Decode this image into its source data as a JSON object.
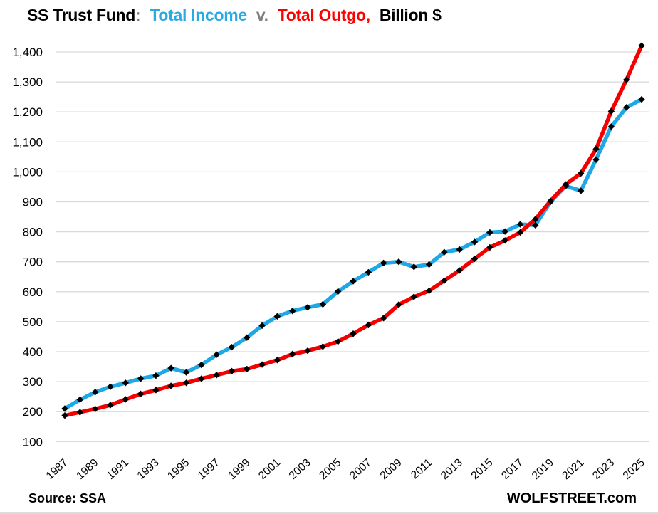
{
  "title": {
    "prefix": "SS Trust Fund",
    "colon": ":",
    "income_label": "Total Income",
    "vs_label": "v.",
    "outgo_label": "Total Outgo",
    "comma": ",",
    "suffix": "Billion $"
  },
  "footer": {
    "source": "Source: SSA",
    "brand": "WOLFSTREET.com"
  },
  "colors": {
    "title_income_blue": "#29ABE2",
    "title_outgo_red": "#FF0000",
    "title_gray": "#7F7F7F",
    "text_black": "#000000",
    "line_income_blue": "#1FA7E6",
    "line_outgo_red": "#F40000",
    "gridline_gray": "#D9D9D9",
    "marker_black": "#000000"
  },
  "chart_data": {
    "type": "line",
    "title": "SS Trust Fund: Total Income v. Total Outgo, Billion $",
    "unit": "Billion $",
    "grid": "horizontal-only",
    "legend_position": "in-title",
    "marker": "black-diamond",
    "ylim": [
      100,
      1400
    ],
    "y_tick_interval": 100,
    "y_tick_values": [
      100,
      200,
      300,
      400,
      500,
      600,
      700,
      800,
      900,
      1000,
      1100,
      1200,
      1300,
      1400
    ],
    "y_tick_labels": [
      "100",
      "200",
      "300",
      "400",
      "500",
      "600",
      "700",
      "800",
      "900",
      "1,000",
      "1,100",
      "1,200",
      "1,300",
      "1,400"
    ],
    "x": [
      1987,
      1988,
      1989,
      1990,
      1991,
      1992,
      1993,
      1994,
      1995,
      1996,
      1997,
      1998,
      1999,
      2000,
      2001,
      2002,
      2003,
      2004,
      2005,
      2006,
      2007,
      2008,
      2009,
      2010,
      2011,
      2012,
      2013,
      2014,
      2015,
      2016,
      2017,
      2018,
      2019,
      2020,
      2021,
      2022,
      2023,
      2024,
      2025
    ],
    "x_tick_labels": [
      "1987",
      "1989",
      "1991",
      "1993",
      "1995",
      "1997",
      "1999",
      "2001",
      "2003",
      "2005",
      "2007",
      "2009",
      "2011",
      "2013",
      "2015",
      "2017",
      "2019",
      "2021",
      "2023",
      "2025"
    ],
    "series": [
      {
        "name": "Total Income",
        "color": "#1FA7E6",
        "values": [
          210,
          240,
          265,
          283,
          296,
          310,
          320,
          345,
          331,
          356,
          390,
          415,
          447,
          487,
          518,
          536,
          548,
          558,
          601,
          635,
          665,
          696,
          700,
          683,
          691,
          732,
          741,
          766,
          798,
          801,
          825,
          822,
          900,
          953,
          937,
          1041,
          1151,
          1215,
          1242
        ]
      },
      {
        "name": "Total Outgo",
        "color": "#F40000",
        "values": [
          187,
          198,
          209,
          222,
          241,
          259,
          272,
          286,
          296,
          310,
          322,
          335,
          342,
          357,
          372,
          392,
          403,
          417,
          434,
          460,
          489,
          512,
          557,
          583,
          603,
          637,
          671,
          710,
          748,
          771,
          798,
          842,
          903,
          958,
          995,
          1076,
          1202,
          1307,
          1421
        ]
      }
    ]
  }
}
